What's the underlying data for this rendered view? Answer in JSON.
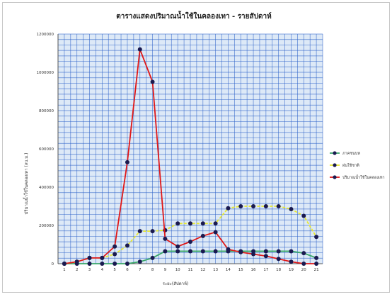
{
  "chart_data": {
    "type": "line",
    "title": "ตารางแสดงปริมาณน้ำใช้ในคลองเทา - รายสัปดาห์",
    "xlabel": "ระยะ(สัปดาห์)",
    "ylabel": "ปริมาณน้ำใช้ในคลองเทา (ลบ.ม.)",
    "categories": [
      "1",
      "2",
      "3",
      "4",
      "5",
      "6",
      "7",
      "8",
      "9",
      "10",
      "11",
      "12",
      "13",
      "14",
      "15",
      "16",
      "17",
      "18",
      "19",
      "20",
      "21"
    ],
    "ylim": [
      0,
      1200000
    ],
    "yticks": [
      0,
      200000,
      400000,
      600000,
      800000,
      1000000,
      1200000
    ],
    "ytick_labels": [
      "0",
      "200000",
      "400000",
      "600000",
      "800000",
      "1000000",
      "1200000"
    ],
    "grid": true,
    "plot_background": "#dde9f7",
    "grid_color": "#2a5fc8",
    "legend_position": "right",
    "series": [
      {
        "name": "ภาคชนบท",
        "line_color": "#3aa86a",
        "marker_color": "#1a1a50",
        "values": [
          0,
          0,
          0,
          0,
          0,
          0,
          10000,
          30000,
          65000,
          65000,
          65000,
          65000,
          65000,
          65000,
          65000,
          65000,
          65000,
          65000,
          65000,
          55000,
          30000
        ]
      },
      {
        "name": "ฝนใช้ชาติ",
        "line_color": "#e8e830",
        "marker_color": "#1a1a50",
        "values": [
          0,
          10000,
          30000,
          30000,
          50000,
          95000,
          170000,
          170000,
          175000,
          210000,
          210000,
          210000,
          210000,
          290000,
          300000,
          300000,
          300000,
          300000,
          285000,
          250000,
          140000
        ]
      },
      {
        "name": "ปริมาณน้ำใช้ในคลองเทา",
        "line_color": "#e01818",
        "marker_color": "#1a1a50",
        "values": [
          0,
          10000,
          30000,
          30000,
          90000,
          530000,
          1120000,
          950000,
          130000,
          90000,
          115000,
          145000,
          165000,
          75000,
          60000,
          50000,
          40000,
          25000,
          10000,
          0,
          0
        ]
      }
    ]
  }
}
